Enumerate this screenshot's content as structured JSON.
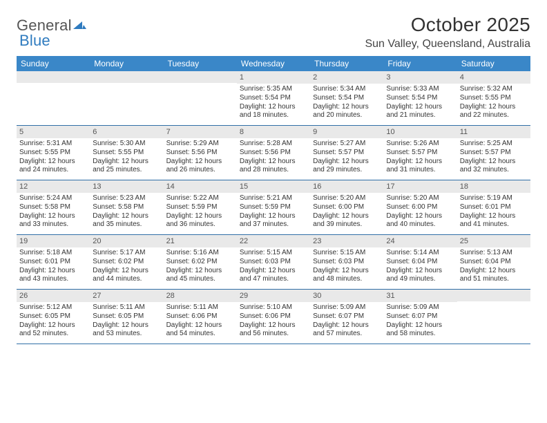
{
  "logo": {
    "text_general": "General",
    "text_blue": "Blue",
    "mark_fill": "#2f7bbf"
  },
  "title": "October 2025",
  "location": "Sun Valley, Queensland, Australia",
  "header_bg": "#3a87c8",
  "row_border": "#2f6ea6",
  "daynum_bg": "#e9e9e9",
  "weekdays": [
    "Sunday",
    "Monday",
    "Tuesday",
    "Wednesday",
    "Thursday",
    "Friday",
    "Saturday"
  ],
  "weeks": [
    [
      {
        "n": "",
        "sr": "",
        "ss": "",
        "dl": ""
      },
      {
        "n": "",
        "sr": "",
        "ss": "",
        "dl": ""
      },
      {
        "n": "",
        "sr": "",
        "ss": "",
        "dl": ""
      },
      {
        "n": "1",
        "sr": "5:35 AM",
        "ss": "5:54 PM",
        "dl": "12 hours and 18 minutes."
      },
      {
        "n": "2",
        "sr": "5:34 AM",
        "ss": "5:54 PM",
        "dl": "12 hours and 20 minutes."
      },
      {
        "n": "3",
        "sr": "5:33 AM",
        "ss": "5:54 PM",
        "dl": "12 hours and 21 minutes."
      },
      {
        "n": "4",
        "sr": "5:32 AM",
        "ss": "5:55 PM",
        "dl": "12 hours and 22 minutes."
      }
    ],
    [
      {
        "n": "5",
        "sr": "5:31 AM",
        "ss": "5:55 PM",
        "dl": "12 hours and 24 minutes."
      },
      {
        "n": "6",
        "sr": "5:30 AM",
        "ss": "5:55 PM",
        "dl": "12 hours and 25 minutes."
      },
      {
        "n": "7",
        "sr": "5:29 AM",
        "ss": "5:56 PM",
        "dl": "12 hours and 26 minutes."
      },
      {
        "n": "8",
        "sr": "5:28 AM",
        "ss": "5:56 PM",
        "dl": "12 hours and 28 minutes."
      },
      {
        "n": "9",
        "sr": "5:27 AM",
        "ss": "5:57 PM",
        "dl": "12 hours and 29 minutes."
      },
      {
        "n": "10",
        "sr": "5:26 AM",
        "ss": "5:57 PM",
        "dl": "12 hours and 31 minutes."
      },
      {
        "n": "11",
        "sr": "5:25 AM",
        "ss": "5:57 PM",
        "dl": "12 hours and 32 minutes."
      }
    ],
    [
      {
        "n": "12",
        "sr": "5:24 AM",
        "ss": "5:58 PM",
        "dl": "12 hours and 33 minutes."
      },
      {
        "n": "13",
        "sr": "5:23 AM",
        "ss": "5:58 PM",
        "dl": "12 hours and 35 minutes."
      },
      {
        "n": "14",
        "sr": "5:22 AM",
        "ss": "5:59 PM",
        "dl": "12 hours and 36 minutes."
      },
      {
        "n": "15",
        "sr": "5:21 AM",
        "ss": "5:59 PM",
        "dl": "12 hours and 37 minutes."
      },
      {
        "n": "16",
        "sr": "5:20 AM",
        "ss": "6:00 PM",
        "dl": "12 hours and 39 minutes."
      },
      {
        "n": "17",
        "sr": "5:20 AM",
        "ss": "6:00 PM",
        "dl": "12 hours and 40 minutes."
      },
      {
        "n": "18",
        "sr": "5:19 AM",
        "ss": "6:01 PM",
        "dl": "12 hours and 41 minutes."
      }
    ],
    [
      {
        "n": "19",
        "sr": "5:18 AM",
        "ss": "6:01 PM",
        "dl": "12 hours and 43 minutes."
      },
      {
        "n": "20",
        "sr": "5:17 AM",
        "ss": "6:02 PM",
        "dl": "12 hours and 44 minutes."
      },
      {
        "n": "21",
        "sr": "5:16 AM",
        "ss": "6:02 PM",
        "dl": "12 hours and 45 minutes."
      },
      {
        "n": "22",
        "sr": "5:15 AM",
        "ss": "6:03 PM",
        "dl": "12 hours and 47 minutes."
      },
      {
        "n": "23",
        "sr": "5:15 AM",
        "ss": "6:03 PM",
        "dl": "12 hours and 48 minutes."
      },
      {
        "n": "24",
        "sr": "5:14 AM",
        "ss": "6:04 PM",
        "dl": "12 hours and 49 minutes."
      },
      {
        "n": "25",
        "sr": "5:13 AM",
        "ss": "6:04 PM",
        "dl": "12 hours and 51 minutes."
      }
    ],
    [
      {
        "n": "26",
        "sr": "5:12 AM",
        "ss": "6:05 PM",
        "dl": "12 hours and 52 minutes."
      },
      {
        "n": "27",
        "sr": "5:11 AM",
        "ss": "6:05 PM",
        "dl": "12 hours and 53 minutes."
      },
      {
        "n": "28",
        "sr": "5:11 AM",
        "ss": "6:06 PM",
        "dl": "12 hours and 54 minutes."
      },
      {
        "n": "29",
        "sr": "5:10 AM",
        "ss": "6:06 PM",
        "dl": "12 hours and 56 minutes."
      },
      {
        "n": "30",
        "sr": "5:09 AM",
        "ss": "6:07 PM",
        "dl": "12 hours and 57 minutes."
      },
      {
        "n": "31",
        "sr": "5:09 AM",
        "ss": "6:07 PM",
        "dl": "12 hours and 58 minutes."
      },
      {
        "n": "",
        "sr": "",
        "ss": "",
        "dl": ""
      }
    ]
  ],
  "labels": {
    "sunrise": "Sunrise:",
    "sunset": "Sunset:",
    "daylight": "Daylight:"
  }
}
